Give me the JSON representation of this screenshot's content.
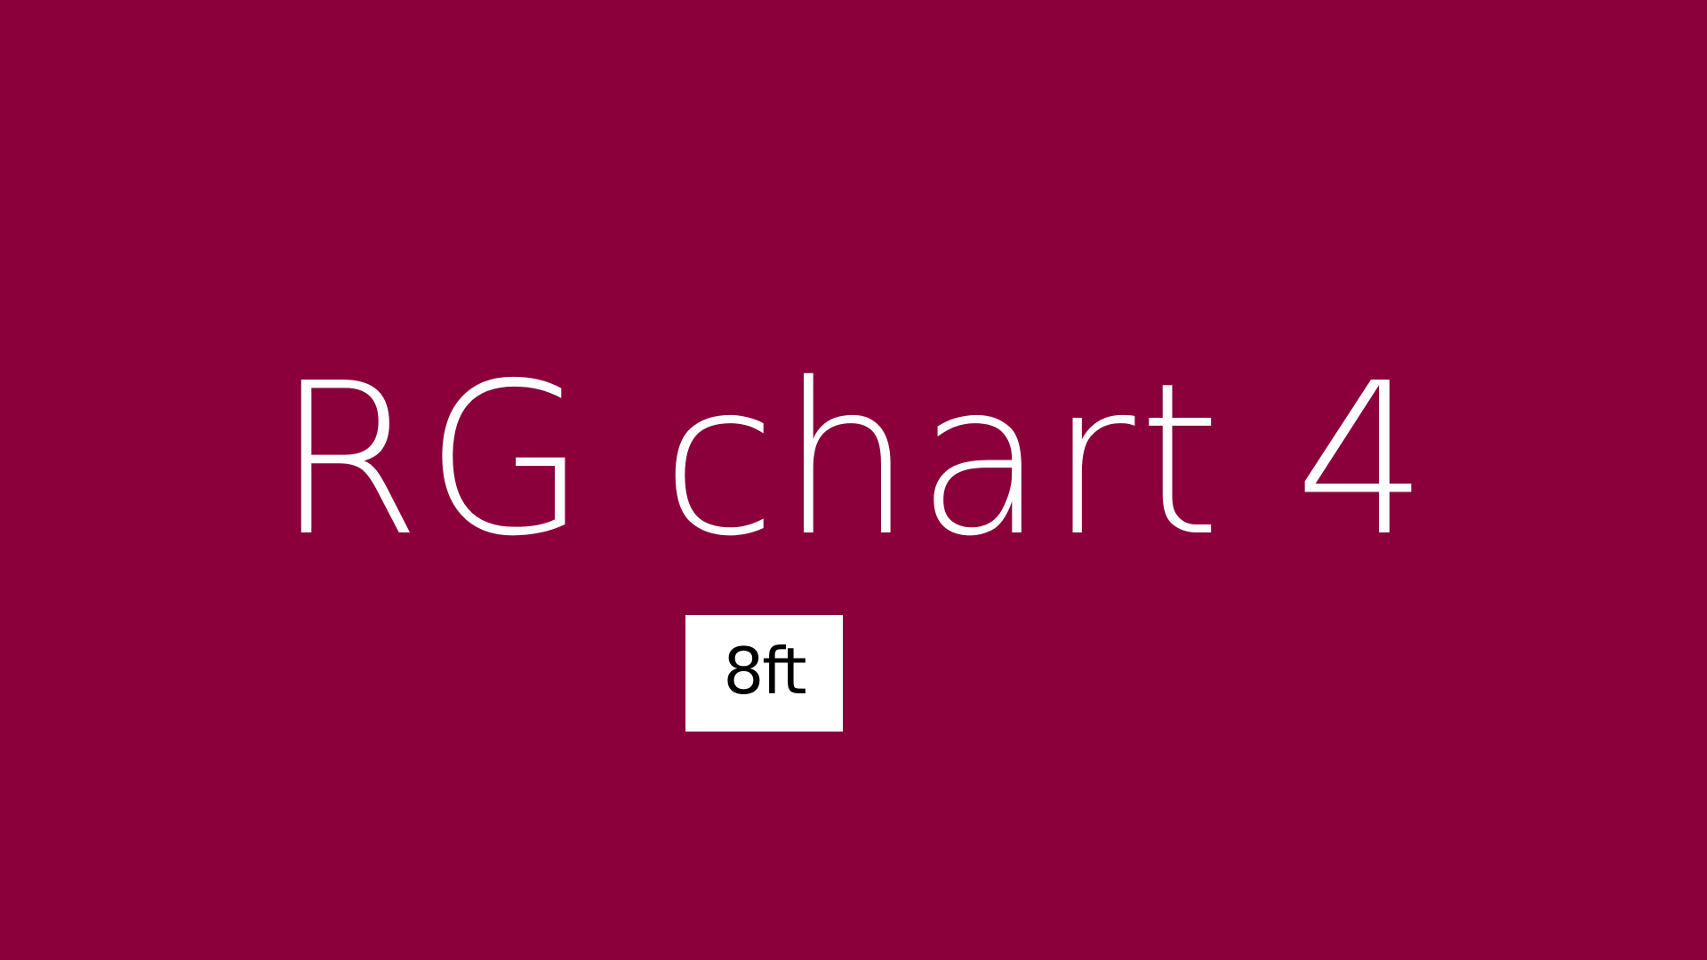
{
  "slide": {
    "title": "RG chart 4",
    "badge_text": "8ft",
    "colors": {
      "background": "#8b003b",
      "title_text": "#ffffff",
      "badge_background": "#ffffff",
      "badge_text": "#000000"
    }
  }
}
